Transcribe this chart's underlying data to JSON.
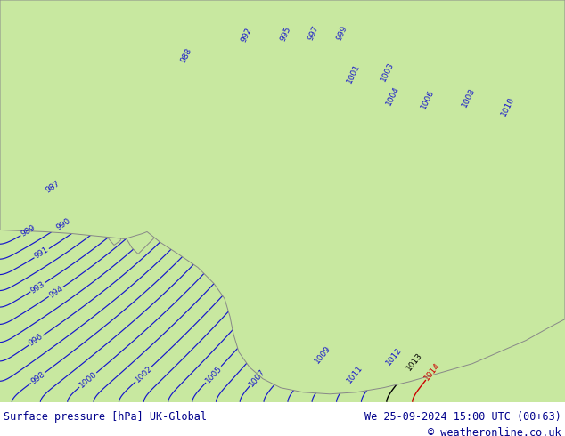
{
  "title_left": "Surface pressure [hPa] UK-Global",
  "title_right": "We 25-09-2024 15:00 UTC (00+63)",
  "copyright": "© weatheronline.co.uk",
  "bg_color": "#c8e8a0",
  "sea_color": "#c8c8c8",
  "land_color": "#c8e8a0",
  "contour_color_blue": "#1515cc",
  "contour_color_black": "#000000",
  "contour_color_red": "#cc0000",
  "footer_bg": "#ffffff",
  "footer_text_color": "#00008b",
  "coast_color": "#888888",
  "figsize": [
    6.34,
    4.9
  ],
  "dpi": 100
}
